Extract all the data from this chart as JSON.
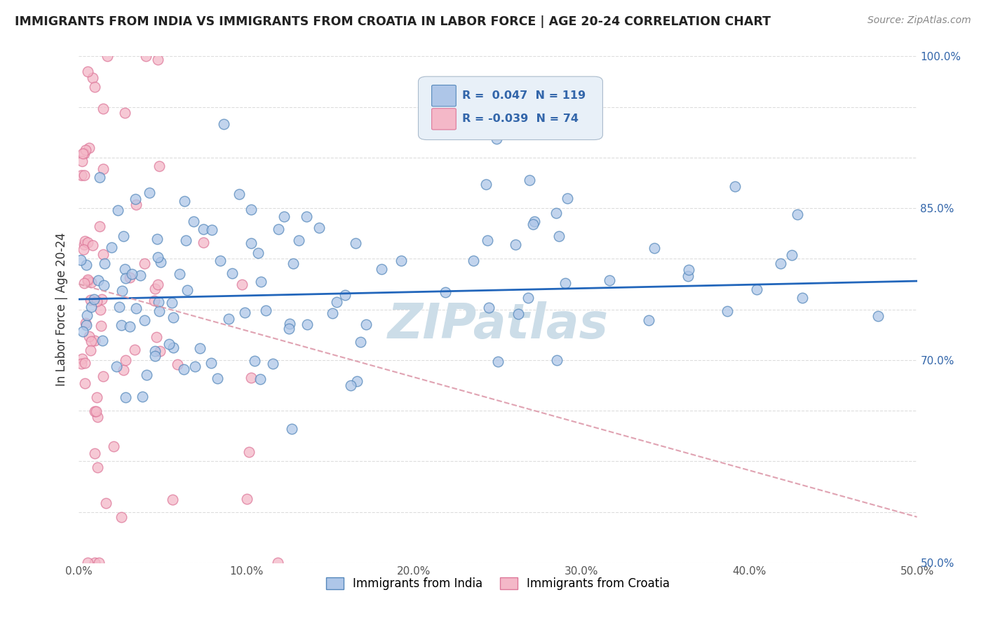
{
  "title": "IMMIGRANTS FROM INDIA VS IMMIGRANTS FROM CROATIA IN LABOR FORCE | AGE 20-24 CORRELATION CHART",
  "source": "Source: ZipAtlas.com",
  "ylabel": "In Labor Force | Age 20-24",
  "xlim": [
    0.0,
    0.5
  ],
  "ylim": [
    0.5,
    1.0
  ],
  "xticklabels": [
    "0.0%",
    "10.0%",
    "20.0%",
    "30.0%",
    "40.0%",
    "50.0%"
  ],
  "ytick_vals": [
    0.5,
    0.55,
    0.6,
    0.65,
    0.7,
    0.75,
    0.8,
    0.85,
    0.9,
    0.95,
    1.0
  ],
  "ytick_labels": [
    "50.0%",
    "",
    "",
    "",
    "70.0%",
    "",
    "",
    "85.0%",
    "",
    "",
    "100.0%"
  ],
  "india_color": "#aec6e8",
  "croatia_color": "#f4b8c8",
  "india_edge": "#5588bb",
  "croatia_edge": "#dd7799",
  "trend_india_color": "#2266bb",
  "trend_croatia_color": "#dd99aa",
  "R_india": 0.047,
  "N_india": 119,
  "R_croatia": -0.039,
  "N_croatia": 74,
  "watermark": "ZIPatlas",
  "watermark_color": "#ccdde8",
  "legend_box_color": "#e8f0f8",
  "legend_border_color": "#aabbcc",
  "legend_text_color_blue": "#3366aa",
  "legend_text_color_dark": "#222222",
  "background_color": "#ffffff",
  "grid_color": "#dddddd"
}
